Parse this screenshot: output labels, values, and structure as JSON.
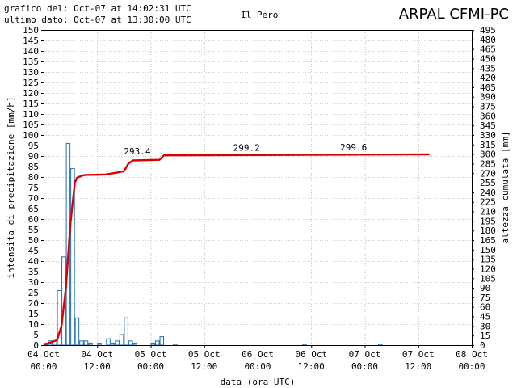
{
  "header": {
    "generated": "grafico del: Oct-07 at 14:02:31 UTC",
    "last_data": "ultimo dato: Oct-07 at 13:30:00 UTC",
    "station": "Il Pero",
    "brand": "ARPAL CFMI-PC"
  },
  "chart_data": {
    "type": "bar+line",
    "xlabel": "data (ora UTC)",
    "ylabel_left": "intensita di precipitazione [mm/h]",
    "ylabel_right": "altezza cumulata [mm]",
    "x_range_hours": [
      0,
      96
    ],
    "x_ticks": [
      {
        "h": 0,
        "l1": "04 Oct",
        "l2": "00:00"
      },
      {
        "h": 12,
        "l1": "04 Oct",
        "l2": "12:00"
      },
      {
        "h": 24,
        "l1": "05 Oct",
        "l2": "00:00"
      },
      {
        "h": 36,
        "l1": "05 Oct",
        "l2": "12:00"
      },
      {
        "h": 48,
        "l1": "06 Oct",
        "l2": "00:00"
      },
      {
        "h": 60,
        "l1": "06 Oct",
        "l2": "12:00"
      },
      {
        "h": 72,
        "l1": "07 Oct",
        "l2": "00:00"
      },
      {
        "h": 84,
        "l1": "07 Oct",
        "l2": "12:00"
      },
      {
        "h": 96,
        "l1": "08 Oct",
        "l2": "00:00"
      }
    ],
    "y_left": {
      "min": 0,
      "max": 150,
      "step": 5
    },
    "y_right": {
      "min": 0,
      "max": 495,
      "step": 15
    },
    "grid": true,
    "bar_color": "#1f6fb4",
    "line_color": "#dd0000",
    "intensity_bars": [
      {
        "h": 0.5,
        "v": 1
      },
      {
        "h": 1.5,
        "v": 2
      },
      {
        "h": 2.5,
        "v": 2
      },
      {
        "h": 3.5,
        "v": 26
      },
      {
        "h": 4.5,
        "v": 42
      },
      {
        "h": 5.5,
        "v": 96
      },
      {
        "h": 6.5,
        "v": 84
      },
      {
        "h": 7.5,
        "v": 13
      },
      {
        "h": 8.5,
        "v": 2
      },
      {
        "h": 9.5,
        "v": 2
      },
      {
        "h": 10.5,
        "v": 1
      },
      {
        "h": 12.5,
        "v": 1
      },
      {
        "h": 14.5,
        "v": 3
      },
      {
        "h": 15.5,
        "v": 1
      },
      {
        "h": 16.5,
        "v": 2
      },
      {
        "h": 17.5,
        "v": 5
      },
      {
        "h": 18.5,
        "v": 13
      },
      {
        "h": 19.5,
        "v": 2
      },
      {
        "h": 20.5,
        "v": 1
      },
      {
        "h": 24.5,
        "v": 1
      },
      {
        "h": 25.5,
        "v": 2
      },
      {
        "h": 26.5,
        "v": 4
      },
      {
        "h": 29.5,
        "v": 0.5
      },
      {
        "h": 58.5,
        "v": 0.5
      },
      {
        "h": 75.5,
        "v": 0.5
      }
    ],
    "cumulative": [
      {
        "h": 0,
        "v": 0
      },
      {
        "h": 3,
        "v": 8
      },
      {
        "h": 4,
        "v": 30
      },
      {
        "h": 5,
        "v": 90
      },
      {
        "h": 6,
        "v": 190
      },
      {
        "h": 7,
        "v": 255
      },
      {
        "h": 7.5,
        "v": 263
      },
      {
        "h": 9,
        "v": 267
      },
      {
        "h": 14,
        "v": 268
      },
      {
        "h": 18,
        "v": 273
      },
      {
        "h": 19,
        "v": 285
      },
      {
        "h": 20,
        "v": 290
      },
      {
        "h": 26,
        "v": 291
      },
      {
        "h": 27,
        "v": 298
      },
      {
        "h": 86.5,
        "v": 299.6
      }
    ],
    "annotations": [
      {
        "h": 21,
        "v": 293.4,
        "text": "293.4"
      },
      {
        "h": 45.5,
        "v": 299.2,
        "text": "299.2"
      },
      {
        "h": 69.5,
        "v": 299.6,
        "text": "299.6"
      }
    ]
  }
}
